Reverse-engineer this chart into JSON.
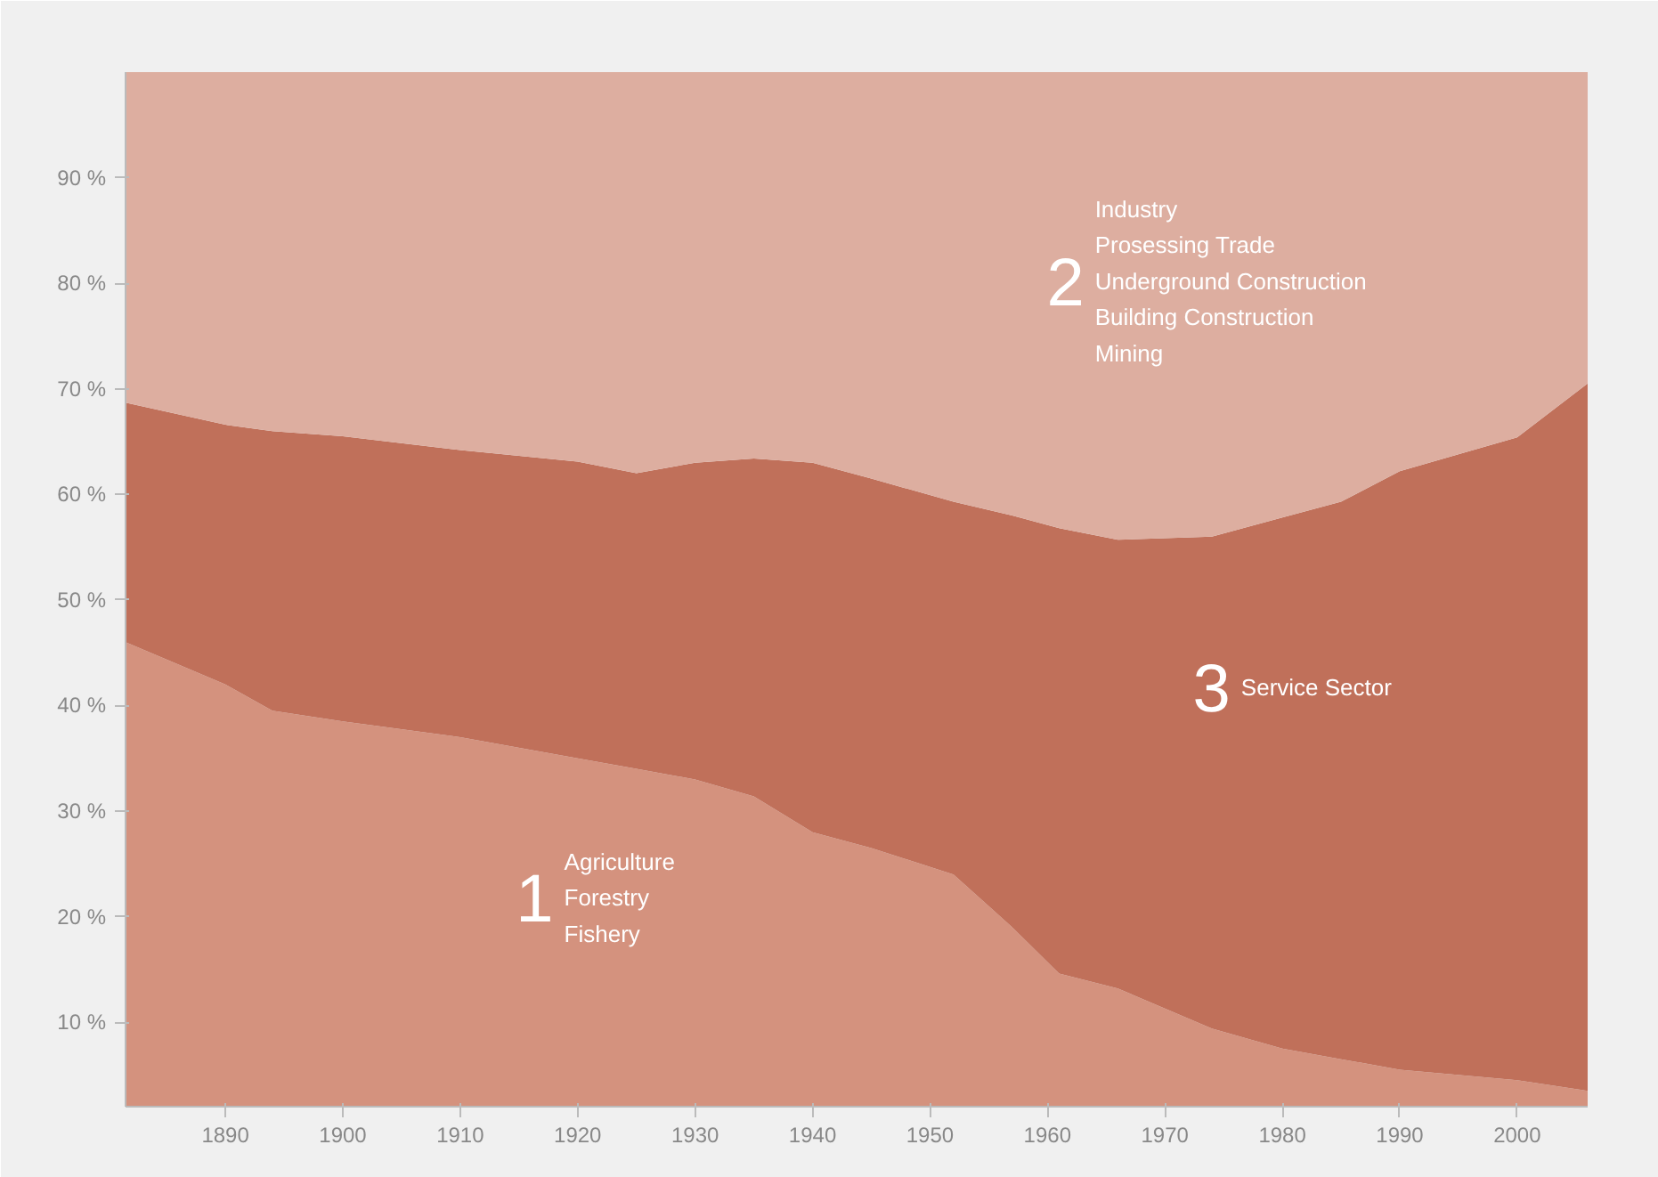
{
  "chart_data": {
    "type": "area",
    "stacked": true,
    "x": [
      1881.5,
      1890,
      1894,
      1900,
      1910,
      1920,
      1925,
      1930,
      1935,
      1940,
      1945,
      1952,
      1957,
      1961,
      1966,
      1974,
      1980,
      1985,
      1990,
      2000,
      2006
    ],
    "series": [
      {
        "name": "Agriculture\nForestry\nFishery",
        "color": "#d4927e",
        "values": [
          46,
          42,
          39.5,
          38.5,
          37,
          35,
          34,
          33,
          31.4,
          28,
          26.5,
          24,
          19,
          14.6,
          13.2,
          9.4,
          7.5,
          6.5,
          5.5,
          4.5,
          3.5
        ]
      },
      {
        "name": "Service Sector",
        "color": "#c0705a",
        "values": [
          22.7,
          24.6,
          26.5,
          27,
          27.2,
          28.1,
          28,
          30,
          32,
          35,
          35,
          35.3,
          39,
          42.2,
          42.5,
          46.6,
          50.3,
          52.8,
          56.7,
          60.9,
          67
        ]
      },
      {
        "name": "Industry\nProsessing Trade\nUnderground Construction\nBuilding Construction\nMining",
        "color": "#ddaea0",
        "values": [
          31.3,
          33.4,
          34,
          34.5,
          35.8,
          36.9,
          38,
          37,
          36.6,
          37,
          38.5,
          40.7,
          42,
          43.2,
          44.3,
          44,
          42.2,
          40.7,
          37.8,
          34.6,
          29.5
        ]
      }
    ],
    "xlim": [
      1881.5,
      2006
    ],
    "ylim": [
      2,
      100
    ],
    "xticks": [
      1890,
      1900,
      1910,
      1920,
      1930,
      1940,
      1950,
      1960,
      1970,
      1980,
      1990,
      2000
    ],
    "yticks": [
      {
        "value": 10,
        "label": "10 %"
      },
      {
        "value": 20,
        "label": "20 %"
      },
      {
        "value": 30,
        "label": "30 %"
      },
      {
        "value": 40,
        "label": "40 %"
      },
      {
        "value": 50,
        "label": "50 %"
      },
      {
        "value": 60,
        "label": "60 %"
      },
      {
        "value": 70,
        "label": "70 %"
      },
      {
        "value": 80,
        "label": "80 %"
      },
      {
        "value": 90,
        "label": "90 %"
      }
    ],
    "legend": false,
    "annotations": [
      "1",
      "3",
      "2"
    ]
  }
}
